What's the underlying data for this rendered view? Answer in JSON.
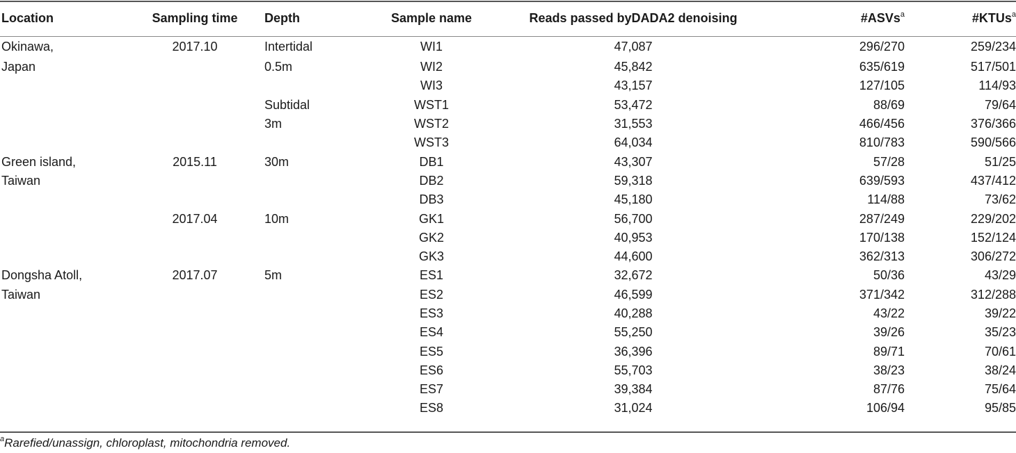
{
  "headers": {
    "location": "Location",
    "sampling_time": "Sampling time",
    "depth": "Depth",
    "sample_name": "Sample name",
    "reads": "Reads passed byDADA2 denoising",
    "asvs": "#ASVs",
    "ktus": "#KTUs",
    "marker": "a"
  },
  "rows": [
    {
      "location": "Okinawa,",
      "time": "2017.10",
      "depth": "Intertidal",
      "name": "WI1",
      "reads": "47,087",
      "asvs": "296/270",
      "ktus": "259/234"
    },
    {
      "location": "Japan",
      "time": "",
      "depth": "0.5m",
      "name": "WI2",
      "reads": "45,842",
      "asvs": "635/619",
      "ktus": "517/501"
    },
    {
      "location": "",
      "time": "",
      "depth": "",
      "name": "WI3",
      "reads": "43,157",
      "asvs": "127/105",
      "ktus": "114/93"
    },
    {
      "location": "",
      "time": "",
      "depth": "Subtidal",
      "name": "WST1",
      "reads": "53,472",
      "asvs": "88/69",
      "ktus": "79/64"
    },
    {
      "location": "",
      "time": "",
      "depth": "3m",
      "name": "WST2",
      "reads": "31,553",
      "asvs": "466/456",
      "ktus": "376/366"
    },
    {
      "location": "",
      "time": "",
      "depth": "",
      "name": "WST3",
      "reads": "64,034",
      "asvs": "810/783",
      "ktus": "590/566"
    },
    {
      "location": "Green island,",
      "time": "2015.11",
      "depth": "30m",
      "name": "DB1",
      "reads": "43,307",
      "asvs": "57/28",
      "ktus": "51/25"
    },
    {
      "location": "Taiwan",
      "time": "",
      "depth": "",
      "name": "DB2",
      "reads": "59,318",
      "asvs": "639/593",
      "ktus": "437/412"
    },
    {
      "location": "",
      "time": "",
      "depth": "",
      "name": "DB3",
      "reads": "45,180",
      "asvs": "114/88",
      "ktus": "73/62"
    },
    {
      "location": "",
      "time": "2017.04",
      "depth": "10m",
      "name": "GK1",
      "reads": "56,700",
      "asvs": "287/249",
      "ktus": "229/202"
    },
    {
      "location": "",
      "time": "",
      "depth": "",
      "name": "GK2",
      "reads": "40,953",
      "asvs": "170/138",
      "ktus": "152/124"
    },
    {
      "location": "",
      "time": "",
      "depth": "",
      "name": "GK3",
      "reads": "44,600",
      "asvs": "362/313",
      "ktus": "306/272"
    },
    {
      "location": "Dongsha Atoll,",
      "time": "2017.07",
      "depth": "5m",
      "name": "ES1",
      "reads": "32,672",
      "asvs": "50/36",
      "ktus": "43/29"
    },
    {
      "location": "Taiwan",
      "time": "",
      "depth": "",
      "name": "ES2",
      "reads": "46,599",
      "asvs": "371/342",
      "ktus": "312/288"
    },
    {
      "location": "",
      "time": "",
      "depth": "",
      "name": "ES3",
      "reads": "40,288",
      "asvs": "43/22",
      "ktus": "39/22"
    },
    {
      "location": "",
      "time": "",
      "depth": "",
      "name": "ES4",
      "reads": "55,250",
      "asvs": "39/26",
      "ktus": "35/23"
    },
    {
      "location": "",
      "time": "",
      "depth": "",
      "name": "ES5",
      "reads": "36,396",
      "asvs": "89/71",
      "ktus": "70/61"
    },
    {
      "location": "",
      "time": "",
      "depth": "",
      "name": "ES6",
      "reads": "55,703",
      "asvs": "38/23",
      "ktus": "38/24"
    },
    {
      "location": "",
      "time": "",
      "depth": "",
      "name": "ES7",
      "reads": "39,384",
      "asvs": "87/76",
      "ktus": "75/64"
    },
    {
      "location": "",
      "time": "",
      "depth": "",
      "name": "ES8",
      "reads": "31,024",
      "asvs": "106/94",
      "ktus": "95/85"
    }
  ],
  "footnote": {
    "marker": "a",
    "text": "Rarefied/unassign, chloroplast, mitochondria removed."
  }
}
